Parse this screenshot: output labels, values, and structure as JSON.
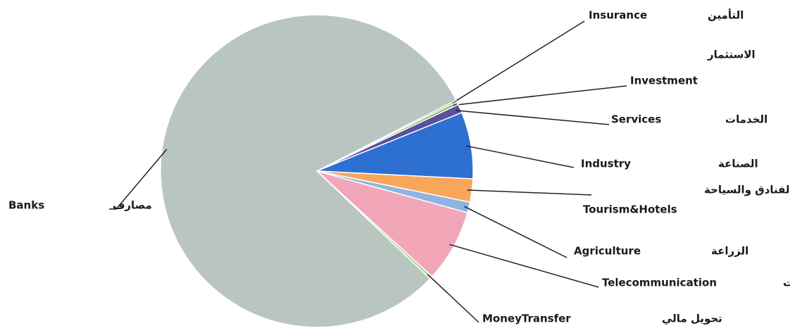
{
  "chart_data": {
    "type": "pie",
    "categories": [
      "Insurance",
      "Investment",
      "Services",
      "Industry",
      "Tourism&Hotels",
      "Agriculture",
      "Telecommunication",
      "MoneyTransfer",
      "Banks"
    ],
    "categories_ar": [
      "التأمين",
      "الاستثمار",
      "الخدمات",
      "الصناعة",
      "الفنادق والسياحة",
      "الزراعة",
      "اتصالات",
      "تحويل مالي",
      "مصارف"
    ],
    "values": [
      0.2,
      0.3,
      0.9,
      6.9,
      2.4,
      1.1,
      7.5,
      0.3,
      80.4
    ],
    "colors": [
      "#9bbb59",
      "#7fb86a",
      "#5b4fa0",
      "#2e6fd2",
      "#f8a65a",
      "#8db4e2",
      "#f2a7b8",
      "#a6d98a",
      "#b9c5c1"
    ]
  }
}
